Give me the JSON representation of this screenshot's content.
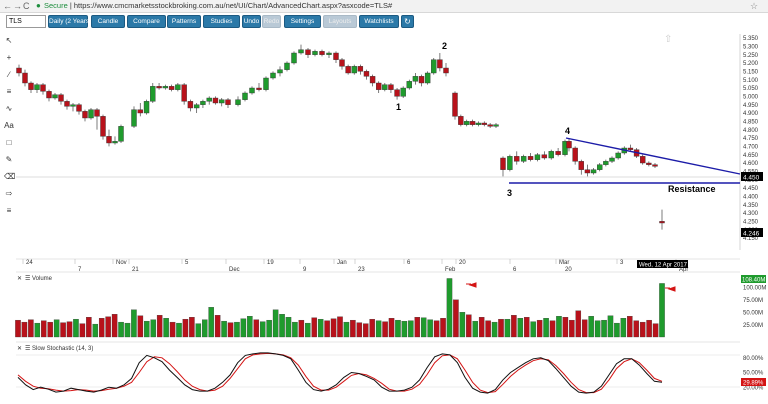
{
  "browser": {
    "back": "←",
    "forward": "→",
    "reload": "C",
    "secure_label": "Secure",
    "url": "https://www.cmcmarketsstockbroking.com.au/net/UI/Chart/AdvancedChart.aspx?asxcode=TLS#"
  },
  "toolbar": {
    "symbol": "TLS",
    "buttons": [
      "Daily (2 Years)",
      "Candle",
      "Compare",
      "Patterns",
      "Studies",
      "Undo",
      "Redo",
      "Settings",
      "Layouts",
      "Watchlists"
    ]
  },
  "tools": [
    "pointer-tool",
    "crosshair-tool",
    "trendline-tool",
    "fibonacci-tool",
    "freehand-tool",
    "text-tool",
    "rectangle-tool",
    "pencil-tool",
    "eraser-tool",
    "draw-style-tool",
    "menu-tool"
  ],
  "colors": {
    "up": "#1f9b2d",
    "down": "#b8121b",
    "trendline": "#1c1ca8",
    "signal": "#d41414",
    "stoch": "#111111"
  },
  "price_axis": {
    "ticks": [
      "5.350",
      "5.300",
      "5.250",
      "5.200",
      "5.150",
      "5.100",
      "5.050",
      "5.000",
      "4.950",
      "4.900",
      "4.850",
      "4.800",
      "4.750",
      "4.700",
      "4.650",
      "4.600",
      "4.550",
      "4.500",
      "4.450",
      "4.400",
      "4.350",
      "4.300",
      "4.250",
      "4.200",
      "4.150"
    ],
    "last_price_label": "4.450",
    "current_price_label": "4.246"
  },
  "date_axis": {
    "labels": [
      "24",
      "7",
      "Nov",
      "21",
      "5",
      "Dec",
      "19",
      "9",
      "Jan",
      "23",
      "6",
      "Feb",
      "20",
      "6",
      "Mar",
      "20",
      "3",
      "Apr"
    ],
    "current_date": "Wed, 12 Apr 2017"
  },
  "annotations": {
    "wave_labels": [
      "1",
      "2",
      "3",
      "4"
    ],
    "resistance_label": "Resistance"
  },
  "volume_panel": {
    "title": "Volume",
    "ticks": [
      "100.00M",
      "75.00M",
      "50.00M",
      "25.00M"
    ],
    "last_label": "108.40M"
  },
  "stoch_panel": {
    "title": "Slow Stochastic (14, 3)",
    "ticks": [
      "80.00%",
      "50.00%",
      "20.00%"
    ],
    "last_label": "29.89%"
  },
  "chart_data": {
    "type": "candlestick",
    "symbol": "TLS",
    "ylim": [
      4.15,
      5.35
    ],
    "candles": [
      {
        "o": 5.17,
        "h": 5.19,
        "c": 5.14,
        "l": 5.12
      },
      {
        "o": 5.14,
        "h": 5.16,
        "c": 5.08,
        "l": 5.06
      },
      {
        "o": 5.08,
        "h": 5.09,
        "c": 5.04,
        "l": 5.02
      },
      {
        "o": 5.04,
        "h": 5.08,
        "c": 5.07,
        "l": 5.02
      },
      {
        "o": 5.07,
        "h": 5.08,
        "c": 5.03,
        "l": 5.01
      },
      {
        "o": 5.03,
        "h": 5.04,
        "c": 4.99,
        "l": 4.97
      },
      {
        "o": 4.99,
        "h": 5.02,
        "c": 5.01,
        "l": 4.98
      },
      {
        "o": 5.01,
        "h": 5.02,
        "c": 4.97,
        "l": 4.95
      },
      {
        "o": 4.97,
        "h": 4.98,
        "c": 4.94,
        "l": 4.92
      },
      {
        "o": 4.94,
        "h": 4.96,
        "c": 4.95,
        "l": 4.91
      },
      {
        "o": 4.95,
        "h": 4.96,
        "c": 4.91,
        "l": 4.89
      },
      {
        "o": 4.91,
        "h": 4.92,
        "c": 4.87,
        "l": 4.85
      },
      {
        "o": 4.87,
        "h": 4.93,
        "c": 4.92,
        "l": 4.86
      },
      {
        "o": 4.92,
        "h": 4.93,
        "c": 4.88,
        "l": 4.8
      },
      {
        "o": 4.88,
        "h": 4.89,
        "c": 4.76,
        "l": 4.74
      },
      {
        "o": 4.76,
        "h": 4.8,
        "c": 4.72,
        "l": 4.7
      },
      {
        "o": 4.72,
        "h": 4.76,
        "c": 4.73,
        "l": 4.71
      },
      {
        "o": 4.73,
        "h": 4.83,
        "c": 4.82,
        "l": 4.72
      },
      {
        "o": 4.82,
        "h": 4.94,
        "c": 4.92,
        "l": 4.81
      },
      {
        "o": 4.92,
        "h": 4.96,
        "c": 4.9,
        "l": 4.88
      },
      {
        "o": 4.9,
        "h": 4.98,
        "c": 4.97,
        "l": 4.89
      },
      {
        "o": 4.97,
        "h": 5.08,
        "c": 5.06,
        "l": 4.96
      },
      {
        "o": 5.06,
        "h": 5.08,
        "c": 5.05,
        "l": 5.04
      },
      {
        "o": 5.05,
        "h": 5.07,
        "c": 5.06,
        "l": 5.04
      },
      {
        "o": 5.06,
        "h": 5.07,
        "c": 5.04,
        "l": 5.03
      },
      {
        "o": 5.04,
        "h": 5.08,
        "c": 5.07,
        "l": 5.03
      },
      {
        "o": 5.07,
        "h": 5.08,
        "c": 4.97,
        "l": 4.95
      },
      {
        "o": 4.97,
        "h": 4.98,
        "c": 4.93,
        "l": 4.91
      },
      {
        "o": 4.93,
        "h": 4.96,
        "c": 4.95,
        "l": 4.9
      },
      {
        "o": 4.95,
        "h": 4.98,
        "c": 4.97,
        "l": 4.93
      },
      {
        "o": 4.97,
        "h": 5.0,
        "c": 4.99,
        "l": 4.95
      },
      {
        "o": 4.99,
        "h": 5.0,
        "c": 4.96,
        "l": 4.95
      },
      {
        "o": 4.96,
        "h": 4.99,
        "c": 4.98,
        "l": 4.94
      },
      {
        "o": 4.98,
        "h": 4.99,
        "c": 4.95,
        "l": 4.93
      },
      {
        "o": 4.95,
        "h": 5.0,
        "c": 4.98,
        "l": 4.94
      },
      {
        "o": 4.98,
        "h": 5.03,
        "c": 5.02,
        "l": 4.97
      },
      {
        "o": 5.02,
        "h": 5.06,
        "c": 5.05,
        "l": 5.01
      },
      {
        "o": 5.05,
        "h": 5.08,
        "c": 5.04,
        "l": 5.03
      },
      {
        "o": 5.04,
        "h": 5.12,
        "c": 5.11,
        "l": 5.03
      },
      {
        "o": 5.11,
        "h": 5.15,
        "c": 5.14,
        "l": 5.1
      },
      {
        "o": 5.14,
        "h": 5.18,
        "c": 5.16,
        "l": 5.12
      },
      {
        "o": 5.16,
        "h": 5.21,
        "c": 5.2,
        "l": 5.15
      },
      {
        "o": 5.2,
        "h": 5.27,
        "c": 5.26,
        "l": 5.19
      },
      {
        "o": 5.26,
        "h": 5.31,
        "c": 5.28,
        "l": 5.25
      },
      {
        "o": 5.28,
        "h": 5.29,
        "c": 5.25,
        "l": 5.23
      },
      {
        "o": 5.25,
        "h": 5.28,
        "c": 5.27,
        "l": 5.24
      },
      {
        "o": 5.27,
        "h": 5.28,
        "c": 5.25,
        "l": 5.24
      },
      {
        "o": 5.25,
        "h": 5.27,
        "c": 5.26,
        "l": 5.23
      },
      {
        "o": 5.26,
        "h": 5.27,
        "c": 5.22,
        "l": 5.2
      },
      {
        "o": 5.22,
        "h": 5.23,
        "c": 5.18,
        "l": 5.16
      },
      {
        "o": 5.18,
        "h": 5.19,
        "c": 5.14,
        "l": 5.13
      },
      {
        "o": 5.14,
        "h": 5.19,
        "c": 5.18,
        "l": 5.13
      },
      {
        "o": 5.18,
        "h": 5.19,
        "c": 5.15,
        "l": 5.13
      },
      {
        "o": 5.15,
        "h": 5.16,
        "c": 5.12,
        "l": 5.1
      },
      {
        "o": 5.12,
        "h": 5.13,
        "c": 5.08,
        "l": 5.06
      },
      {
        "o": 5.08,
        "h": 5.09,
        "c": 5.04,
        "l": 5.02
      },
      {
        "o": 5.04,
        "h": 5.08,
        "c": 5.07,
        "l": 5.03
      },
      {
        "o": 5.07,
        "h": 5.08,
        "c": 5.04,
        "l": 5.02
      },
      {
        "o": 5.04,
        "h": 5.05,
        "c": 5.0,
        "l": 4.98
      },
      {
        "o": 5.0,
        "h": 5.06,
        "c": 5.05,
        "l": 4.99
      },
      {
        "o": 5.05,
        "h": 5.1,
        "c": 5.09,
        "l": 5.04
      },
      {
        "o": 5.09,
        "h": 5.14,
        "c": 5.12,
        "l": 5.07
      },
      {
        "o": 5.12,
        "h": 5.13,
        "c": 5.08,
        "l": 5.06
      },
      {
        "o": 5.08,
        "h": 5.15,
        "c": 5.14,
        "l": 5.07
      },
      {
        "o": 5.14,
        "h": 5.23,
        "c": 5.22,
        "l": 5.13
      },
      {
        "o": 5.22,
        "h": 5.26,
        "c": 5.17,
        "l": 5.15
      },
      {
        "o": 5.17,
        "h": 5.2,
        "c": 5.14,
        "l": 5.12
      },
      {
        "o": 5.02,
        "h": 5.03,
        "c": 4.88,
        "l": 4.86
      },
      {
        "o": 4.88,
        "h": 4.89,
        "c": 4.83,
        "l": 4.82
      },
      {
        "o": 4.83,
        "h": 4.86,
        "c": 4.85,
        "l": 4.82
      },
      {
        "o": 4.85,
        "h": 4.86,
        "c": 4.83,
        "l": 4.82
      },
      {
        "o": 4.83,
        "h": 4.85,
        "c": 4.84,
        "l": 4.82
      },
      {
        "o": 4.84,
        "h": 4.85,
        "c": 4.83,
        "l": 4.82
      },
      {
        "o": 4.83,
        "h": 4.84,
        "c": 4.82,
        "l": 4.81
      },
      {
        "o": 4.82,
        "h": 4.84,
        "c": 4.83,
        "l": 4.81
      },
      {
        "o": 4.63,
        "h": 4.64,
        "c": 4.56,
        "l": 4.52
      },
      {
        "o": 4.56,
        "h": 4.65,
        "c": 4.64,
        "l": 4.55
      },
      {
        "o": 4.64,
        "h": 4.67,
        "c": 4.61,
        "l": 4.59
      },
      {
        "o": 4.61,
        "h": 4.65,
        "c": 4.64,
        "l": 4.6
      },
      {
        "o": 4.64,
        "h": 4.66,
        "c": 4.62,
        "l": 4.61
      },
      {
        "o": 4.62,
        "h": 4.66,
        "c": 4.65,
        "l": 4.61
      },
      {
        "o": 4.65,
        "h": 4.67,
        "c": 4.63,
        "l": 4.62
      },
      {
        "o": 4.63,
        "h": 4.68,
        "c": 4.67,
        "l": 4.62
      },
      {
        "o": 4.67,
        "h": 4.69,
        "c": 4.65,
        "l": 4.64
      },
      {
        "o": 4.65,
        "h": 4.74,
        "c": 4.73,
        "l": 4.64
      },
      {
        "o": 4.73,
        "h": 4.75,
        "c": 4.69,
        "l": 4.67
      },
      {
        "o": 4.69,
        "h": 4.7,
        "c": 4.61,
        "l": 4.59
      },
      {
        "o": 4.61,
        "h": 4.62,
        "c": 4.56,
        "l": 4.53
      },
      {
        "o": 4.56,
        "h": 4.59,
        "c": 4.54,
        "l": 4.52
      },
      {
        "o": 4.54,
        "h": 4.57,
        "c": 4.56,
        "l": 4.53
      },
      {
        "o": 4.56,
        "h": 4.6,
        "c": 4.59,
        "l": 4.55
      },
      {
        "o": 4.59,
        "h": 4.62,
        "c": 4.61,
        "l": 4.58
      },
      {
        "o": 4.61,
        "h": 4.64,
        "c": 4.63,
        "l": 4.6
      },
      {
        "o": 4.63,
        "h": 4.67,
        "c": 4.66,
        "l": 4.62
      },
      {
        "o": 4.66,
        "h": 4.7,
        "c": 4.69,
        "l": 4.65
      },
      {
        "o": 4.69,
        "h": 4.71,
        "c": 4.68,
        "l": 4.67
      },
      {
        "o": 4.68,
        "h": 4.69,
        "c": 4.64,
        "l": 4.63
      },
      {
        "o": 4.64,
        "h": 4.65,
        "c": 4.6,
        "l": 4.59
      },
      {
        "o": 4.6,
        "h": 4.61,
        "c": 4.59,
        "l": 4.58
      },
      {
        "o": 4.59,
        "h": 4.6,
        "c": 4.58,
        "l": 4.57
      },
      {
        "o": 4.25,
        "h": 4.32,
        "c": 4.24,
        "l": 4.2
      }
    ],
    "volume_M": [
      34,
      30,
      35,
      28,
      33,
      30,
      35,
      29,
      31,
      36,
      27,
      40,
      26,
      38,
      41,
      46,
      30,
      28,
      55,
      43,
      32,
      35,
      44,
      38,
      30,
      28,
      36,
      40,
      27,
      35,
      60,
      44,
      32,
      29,
      30,
      37,
      42,
      35,
      31,
      34,
      55,
      46,
      40,
      30,
      34,
      28,
      39,
      36,
      33,
      37,
      41,
      30,
      34,
      29,
      27,
      36,
      33,
      31,
      38,
      34,
      32,
      33,
      40,
      39,
      35,
      33,
      38,
      118,
      75,
      50,
      45,
      32,
      40,
      33,
      30,
      36,
      36,
      44,
      38,
      40,
      31,
      34,
      38,
      33,
      42,
      40,
      34,
      53,
      35,
      42,
      33,
      34,
      43,
      28,
      38,
      42,
      33,
      30,
      34,
      27,
      108
    ],
    "stochastic": {
      "k": [
        40,
        25,
        15,
        20,
        16,
        10,
        12,
        18,
        15,
        12,
        10,
        14,
        20,
        18,
        25,
        38,
        70,
        85,
        80,
        72,
        55,
        40,
        25,
        15,
        12,
        12,
        18,
        30,
        45,
        70,
        85,
        88,
        90,
        90,
        88,
        85,
        78,
        55,
        30,
        15,
        12,
        16,
        25,
        40,
        50,
        48,
        42,
        35,
        20,
        12,
        12,
        14,
        20,
        35,
        60,
        82,
        88,
        86,
        70,
        40,
        18,
        10,
        8,
        15,
        35,
        50,
        60,
        70,
        78,
        80,
        74,
        58,
        40,
        22,
        10,
        8,
        10,
        22,
        45,
        68,
        78,
        78,
        65,
        48,
        32,
        30
      ],
      "signal": [
        45,
        32,
        22,
        18,
        17,
        14,
        12,
        13,
        15,
        14,
        12,
        13,
        16,
        18,
        22,
        30,
        50,
        72,
        82,
        80,
        68,
        52,
        35,
        22,
        15,
        12,
        14,
        22,
        38,
        58,
        78,
        86,
        88,
        89,
        88,
        86,
        80,
        65,
        42,
        22,
        14,
        14,
        20,
        32,
        44,
        48,
        45,
        38,
        28,
        16,
        12,
        12,
        16,
        26,
        46,
        70,
        84,
        86,
        78,
        55,
        30,
        14,
        9,
        11,
        26,
        42,
        55,
        65,
        74,
        78,
        76,
        64,
        48,
        30,
        15,
        9,
        9,
        16,
        35,
        58,
        72,
        78,
        70,
        55,
        38,
        32
      ]
    }
  }
}
